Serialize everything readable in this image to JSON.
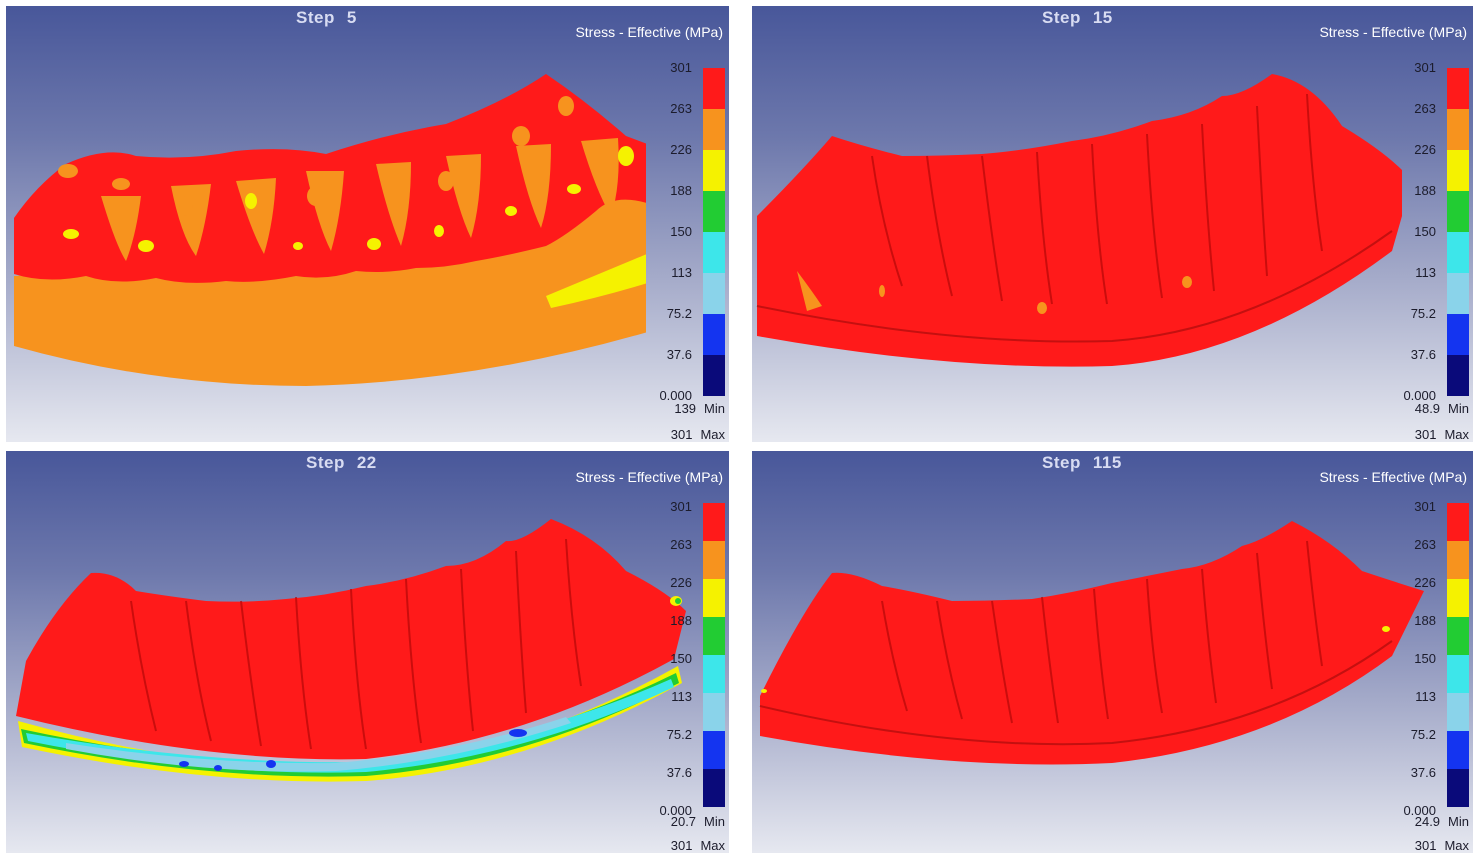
{
  "legend_title": "Stress - Effective (MPa)",
  "min_label": "Min",
  "max_label": "Max",
  "step_label": "Step",
  "ticks": [
    "301",
    "263",
    "226",
    "188",
    "150",
    "113",
    "75.2",
    "37.6",
    "0.000"
  ],
  "colors": [
    "#ff1a1a",
    "#f7931e",
    "#f5f200",
    "#22cc33",
    "#3de6ea",
    "#8ad3ea",
    "#1434f0",
    "#0a0a7a"
  ],
  "panels": [
    {
      "step": "5",
      "min": "139",
      "max": "301"
    },
    {
      "step": "15",
      "min": "48.9",
      "max": "301"
    },
    {
      "step": "22",
      "min": "20.7",
      "max": "301"
    },
    {
      "step": "115",
      "min": "24.9",
      "max": "301"
    }
  ]
}
